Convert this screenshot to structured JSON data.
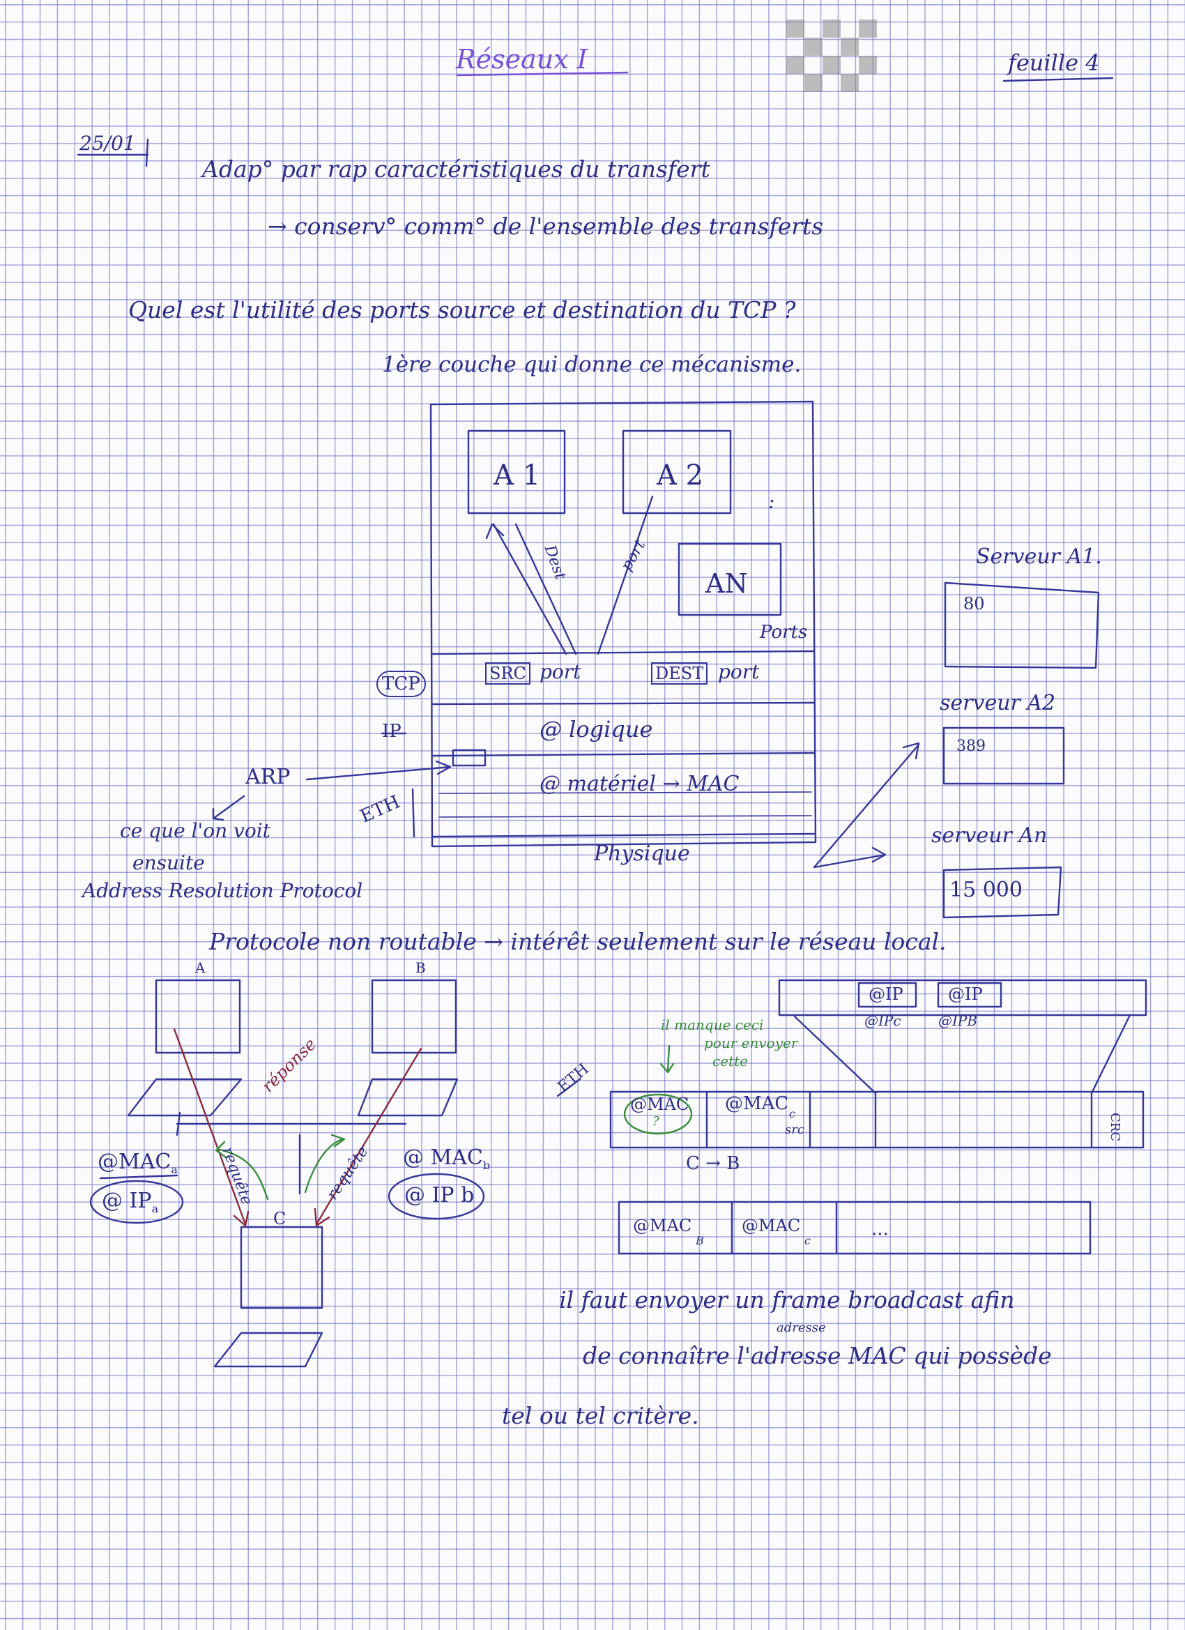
{
  "header": {
    "title": "Réseaux  I",
    "sheet_number": "feuille 4",
    "date": "25/01"
  },
  "notes": {
    "line1": "Adap° par rap caractéristiques du transfert",
    "line2": "→ conserv° comm° de l'ensemble des transferts",
    "question": "Quel est l'utilité des ports source et destination du TCP ?",
    "answer": "1ère couche qui donne ce mécanisme."
  },
  "stack_diagram": {
    "apps": [
      "A 1",
      "A 2",
      "AN"
    ],
    "dots": ":",
    "arrow_dest": "Dest",
    "arrow_port": "port",
    "ports_label": "Ports",
    "layers": {
      "tcp": "TCP",
      "ip": "IP",
      "eth": "ETH",
      "src_port_box": "SRC",
      "src_port": "port",
      "dest_port_box": "DEST",
      "dest_port": "port",
      "logical": "@ logique",
      "hardware": "@ matériel → MAC",
      "physical": "Physique"
    },
    "arp": {
      "label": "ARP",
      "note1": "ce que l'on voit",
      "note2": "ensuite",
      "expansion": "Address Resolution Protocol"
    },
    "servers": [
      {
        "label": "Serveur A1.",
        "port": "80"
      },
      {
        "label": "serveur A2",
        "port": "389"
      },
      {
        "label": "serveur An",
        "port": "15 000"
      }
    ]
  },
  "arp_section": {
    "heading": "Protocole non routable → intérêt seulement sur le réseau local.",
    "machines": {
      "a": "A",
      "b": "B",
      "c": "C"
    },
    "reponse": "réponse",
    "requete_left": "requête",
    "requete_right": "requête",
    "mac_a": "@MAC",
    "mac_a_sub": "a",
    "ip_a": "@ IP",
    "ip_a_sub": "a",
    "mac_b": "@ MAC",
    "mac_b_sub": "b",
    "ip_b": "@ IP b"
  },
  "frames": {
    "ip_header": {
      "box1": "@IP",
      "box2": "@IP",
      "sub1": "@IPc",
      "sub2": "@IPB"
    },
    "missing_note_1": "il manque ceci",
    "missing_note_2": "pour envoyer",
    "missing_note_3": "cette",
    "eth_label": "ETH",
    "eth_frame": {
      "dest_mac": "@MAC",
      "dest_mac_sub": "?",
      "src_mac": "@MAC",
      "src_mac_sub": "c",
      "src_label": "src",
      "crc": "CRC"
    },
    "direction": "C → B",
    "reply_frame": {
      "mac_b": "@MAC",
      "mac_b_sub": "B",
      "mac_c": "@MAC",
      "mac_c_sub": "c",
      "ellipsis": "..."
    }
  },
  "conclusion": {
    "line1": "il faut envoyer un frame broadcast afin",
    "line2": "de connaître l'adresse MAC qui possède",
    "line2_insert": "adresse",
    "line3": "tel ou tel critère."
  },
  "colors": {
    "ink": "#2d2d86",
    "title_ink": "#7650d6",
    "green_ink": "#3a8d3a",
    "red_ink": "#8b2b3c",
    "grid": "#5f5fbe"
  }
}
